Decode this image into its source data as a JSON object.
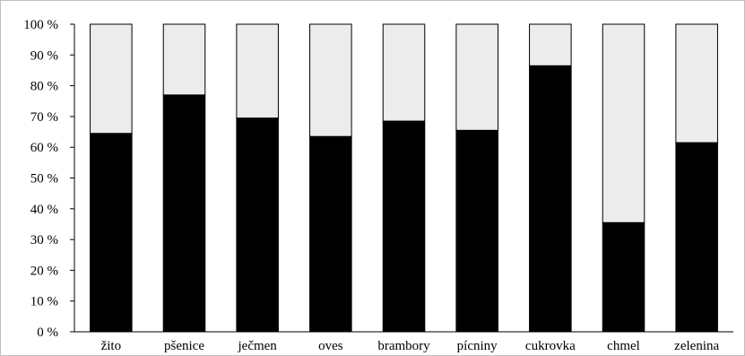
{
  "chart_data": {
    "type": "bar",
    "stacked": true,
    "percent_stacked": true,
    "categories": [
      "žito",
      "pšenice",
      "ječmen",
      "oves",
      "brambory",
      "pícniny",
      "cukrovka",
      "chmel",
      "zelenina"
    ],
    "series": [
      {
        "values": [
          64.5,
          77,
          69.5,
          63.5,
          68.5,
          65.5,
          86.5,
          35.5,
          61.5
        ],
        "color": "#000000"
      },
      {
        "values": [
          35.5,
          23,
          30.5,
          36.5,
          31.5,
          34.5,
          13.5,
          64.5,
          38.5
        ],
        "color": "#ececec"
      }
    ],
    "yticks": [
      "0 %",
      "10 %",
      "20 %",
      "30 %",
      "40 %",
      "50 %",
      "60 %",
      "70 %",
      "80 %",
      "90 %",
      "100 %"
    ],
    "ylim": [
      0,
      100
    ],
    "title": "",
    "xlabel": "",
    "ylabel": "",
    "grid": false,
    "legend": "none"
  }
}
